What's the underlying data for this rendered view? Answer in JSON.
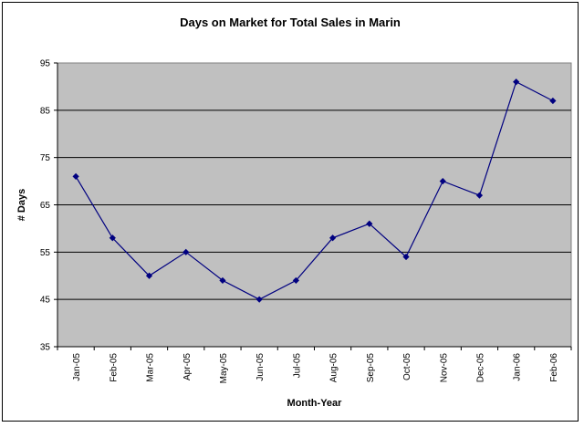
{
  "chart_data": {
    "type": "line",
    "title": "Days on Market for Total Sales in Marin",
    "xlabel": "Month-Year",
    "ylabel": "# Days",
    "categories": [
      "Jan-05",
      "Feb-05",
      "Mar-05",
      "Apr-05",
      "May-05",
      "Jun-05",
      "Jul-05",
      "Aug-05",
      "Sep-05",
      "Oct-05",
      "Nov-05",
      "Dec-05",
      "Jan-06",
      "Feb-06"
    ],
    "series": [
      {
        "values": [
          71,
          58,
          50,
          55,
          49,
          45,
          49,
          58,
          61,
          54,
          70,
          67,
          91,
          87
        ]
      }
    ],
    "ylim": [
      35,
      95
    ],
    "yticks": [
      35,
      45,
      55,
      65,
      75,
      85,
      95
    ],
    "grid": true,
    "legend": "none",
    "colors": {
      "line": "#000080",
      "plot_bg": "#c0c0c0",
      "grid": "#000000"
    }
  }
}
